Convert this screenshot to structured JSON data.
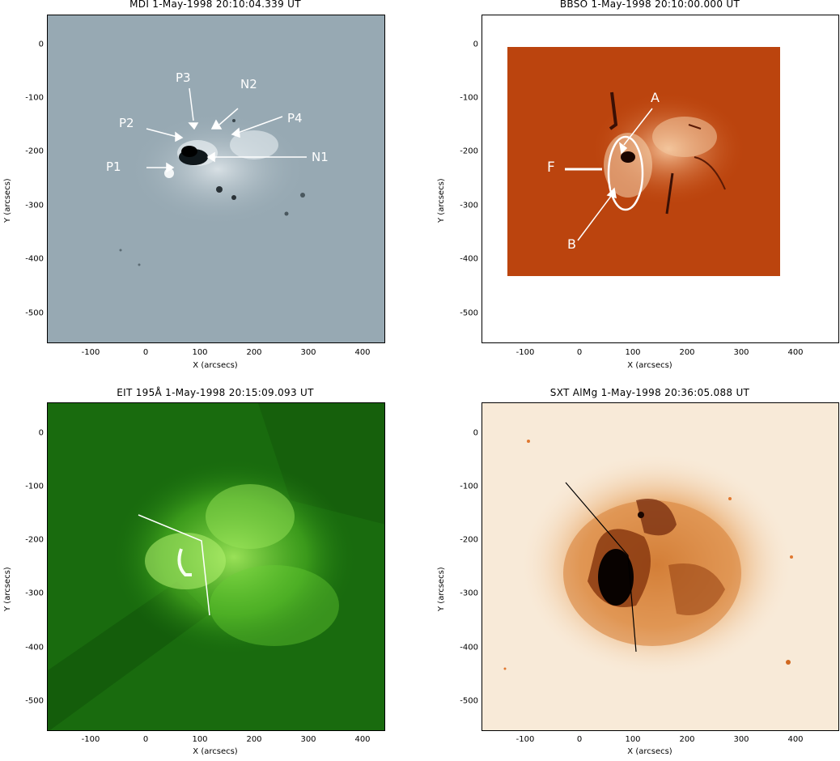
{
  "figure": {
    "panels": [
      {
        "title": "MDI  1-May-1998 20:10:04.339 UT",
        "xlabel": "X (arcsecs)",
        "ylabel": "Y (arcsecs)",
        "xticks": [
          "-100",
          "0",
          "100",
          "200",
          "300",
          "400"
        ],
        "yticks": [
          "0",
          "-100",
          "-200",
          "-300",
          "-400",
          "-500"
        ],
        "background": "#96a8b2",
        "labels": [
          "P3",
          "N2",
          "P2",
          "P4",
          "P1",
          "N1"
        ]
      },
      {
        "title": "BBSO  1-May-1998 20:10:00.000 UT",
        "xlabel": "X (arcsecs)",
        "ylabel": "Y (arcsecs)",
        "xticks": [
          "-100",
          "0",
          "100",
          "200",
          "300",
          "400"
        ],
        "yticks": [
          "0",
          "-100",
          "-200",
          "-300",
          "-400",
          "-500"
        ],
        "background": "#c44a10",
        "labels": [
          "A",
          "F",
          "B"
        ]
      },
      {
        "title": "EIT 195Å  1-May-1998 20:15:09.093 UT",
        "xlabel": "X (arcsecs)",
        "ylabel": "Y (arcsecs)",
        "xticks": [
          "-100",
          "0",
          "100",
          "200",
          "300",
          "400"
        ],
        "yticks": [
          "0",
          "-100",
          "-200",
          "-300",
          "-400",
          "-500"
        ],
        "background": "#1f7a10",
        "labels": []
      },
      {
        "title": "SXT AlMg  1-May-1998 20:36:05.088 UT",
        "xlabel": "X (arcsecs)",
        "ylabel": "Y (arcsecs)",
        "xticks": [
          "-100",
          "0",
          "100",
          "200",
          "300",
          "400"
        ],
        "yticks": [
          "0",
          "-100",
          "-200",
          "-300",
          "-400",
          "-500"
        ],
        "background": "#f7e8d6",
        "labels": []
      }
    ]
  }
}
